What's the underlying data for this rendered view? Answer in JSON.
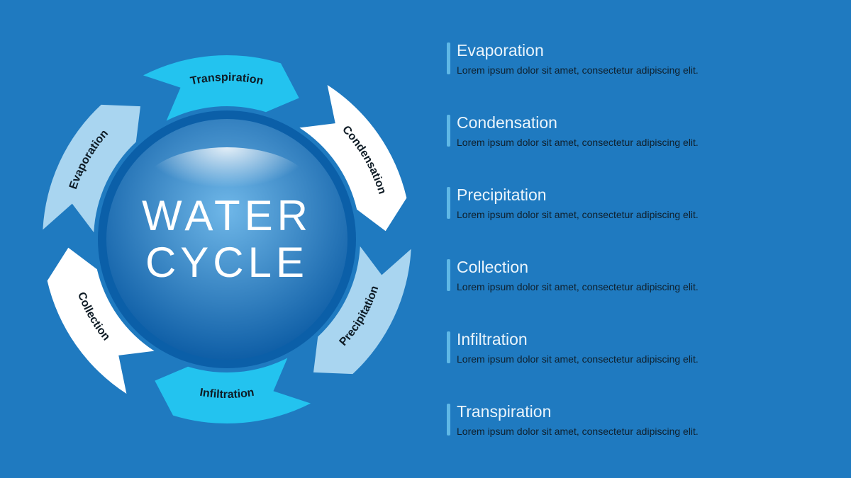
{
  "background_color": "#1f7ac0",
  "center": {
    "line1": "WATER",
    "line2": "CYCLE",
    "text_color": "#ffffff",
    "sphere_outer": "#0b5fa8",
    "sphere_fill_top": "#6fb7e8",
    "sphere_fill_bottom": "#0a5aa3",
    "sphere_highlight": "#d8ecf9"
  },
  "cycle": {
    "type": "flowchart",
    "outer_radius": 260,
    "inner_radius": 188,
    "segment_label_fontsize": 16,
    "segment_label_color": "#0e1b25",
    "segment_label_weight": "700",
    "segments": [
      {
        "name": "Transpiration",
        "start_deg": -120,
        "end_deg": -60,
        "fill": "#23c3ef"
      },
      {
        "name": "Condensation",
        "start_deg": -60,
        "end_deg": 0,
        "fill": "#ffffff"
      },
      {
        "name": "Precipitation",
        "start_deg": 0,
        "end_deg": 60,
        "fill": "#a9d5f0"
      },
      {
        "name": "Infiltration",
        "start_deg": 60,
        "end_deg": 120,
        "fill": "#23c3ef"
      },
      {
        "name": "Collection",
        "start_deg": 120,
        "end_deg": 180,
        "fill": "#ffffff"
      },
      {
        "name": "Evaporation",
        "start_deg": 180,
        "end_deg": 240,
        "fill": "#a9d5f0"
      }
    ]
  },
  "list": {
    "title_color": "#eaf4fb",
    "desc_color": "#0e1b25",
    "bar_color": "#5fb8e6",
    "items": [
      {
        "title": "Evaporation",
        "desc": "Lorem ipsum dolor sit amet, consectetur adipiscing elit."
      },
      {
        "title": "Condensation",
        "desc": "Lorem ipsum dolor sit amet, consectetur adipiscing elit."
      },
      {
        "title": "Precipitation",
        "desc": "Lorem ipsum dolor sit amet, consectetur adipiscing elit."
      },
      {
        "title": "Collection",
        "desc": "Lorem ipsum dolor sit amet, consectetur adipiscing elit."
      },
      {
        "title": "Infiltration",
        "desc": "Lorem ipsum dolor sit amet, consectetur adipiscing elit."
      },
      {
        "title": "Transpiration",
        "desc": "Lorem ipsum dolor sit amet, consectetur adipiscing elit."
      }
    ]
  }
}
